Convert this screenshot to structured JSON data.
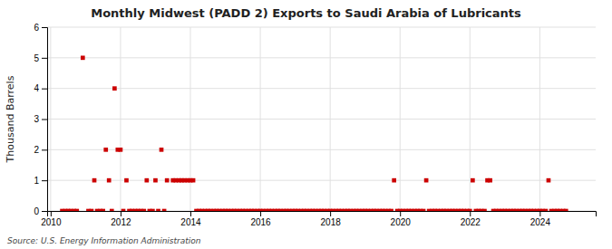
{
  "chart_data": {
    "type": "scatter",
    "title": "Monthly Midwest (PADD 2) Exports to Saudi Arabia of Lubricants",
    "ylabel": "Thousand Barrels",
    "source": "Source: U.S. Energy Information Administration",
    "color": "#cc0000",
    "marker": "square",
    "grid": true,
    "xlim": [
      2009.9,
      2025.6
    ],
    "xticks": [
      2010,
      2012,
      2014,
      2016,
      2018,
      2020,
      2022,
      2024
    ],
    "ylim": [
      0,
      6
    ],
    "yticks": [
      0,
      1,
      2,
      3,
      4,
      5,
      6
    ],
    "x": [
      2010.92,
      2011.25,
      2011.5,
      2011.58,
      2011.67,
      2011.75,
      2011.83,
      2011.92,
      2012,
      2012.08,
      2012.17,
      2012.25,
      2012.33,
      2012.75,
      2012.83,
      2013,
      2013.08,
      2013.17,
      2013.33,
      2013.5,
      2013.58,
      2013.67,
      2013.75,
      2013.83,
      2013.92,
      2014,
      2014.08,
      2010.33,
      2010.42,
      2010.5,
      2010.58,
      2010.67,
      2010.75,
      2011.08,
      2011.17,
      2011.33,
      2011.42,
      2012.42,
      2012.5,
      2012.58,
      2012.67,
      2012.92,
      2013.25,
      2014.17,
      2014.25,
      2014.33,
      2014.42,
      2014.5,
      2014.58,
      2014.67,
      2014.75,
      2014.83,
      2014.92,
      2015,
      2015.08,
      2015.17,
      2015.25,
      2015.33,
      2015.42,
      2015.5,
      2015.58,
      2015.67,
      2015.75,
      2015.83,
      2015.92,
      2016,
      2016.08,
      2016.17,
      2016.25,
      2016.33,
      2016.42,
      2016.5,
      2016.58,
      2016.67,
      2016.75,
      2016.83,
      2016.92,
      2017,
      2017.08,
      2017.17,
      2017.25,
      2017.33,
      2017.42,
      2017.5,
      2017.58,
      2017.67,
      2017.75,
      2017.83,
      2017.92,
      2018,
      2018.08,
      2018.17,
      2018.25,
      2018.33,
      2018.42,
      2018.5,
      2018.58,
      2018.67,
      2018.75,
      2018.83,
      2018.92,
      2019,
      2019.08,
      2019.17,
      2019.25,
      2019.33,
      2019.42,
      2019.5,
      2019.58,
      2019.67,
      2019.75,
      2019.83,
      2019.92,
      2020,
      2020.08,
      2020.17,
      2020.25,
      2020.33,
      2020.42,
      2020.5,
      2020.58,
      2020.67,
      2020.75,
      2020.83,
      2020.92,
      2021,
      2021.08,
      2021.17,
      2021.25,
      2021.33,
      2021.42,
      2021.5,
      2021.58,
      2021.67,
      2021.75,
      2021.83,
      2021.92,
      2022,
      2022.08,
      2022.17,
      2022.25,
      2022.33,
      2022.42,
      2022.5,
      2022.58,
      2022.67,
      2022.75,
      2022.83,
      2022.92,
      2023,
      2023.08,
      2023.17,
      2023.25,
      2023.33,
      2023.42,
      2023.5,
      2023.58,
      2023.67,
      2023.75,
      2023.83,
      2023.92,
      2024,
      2024.08,
      2024.17,
      2024.25,
      2024.33,
      2024.42,
      2024.5,
      2024.58,
      2024.67,
      2024.75
    ],
    "values": [
      5,
      1,
      0,
      2,
      1,
      0,
      4,
      2,
      2,
      0,
      1,
      0,
      0,
      1,
      0,
      1,
      0,
      2,
      1,
      1,
      1,
      1,
      1,
      1,
      1,
      1,
      1,
      0,
      0,
      0,
      0,
      0,
      0,
      0,
      0,
      0,
      0,
      0,
      0,
      0,
      0,
      0,
      0,
      0,
      0,
      0,
      0,
      0,
      0,
      0,
      0,
      0,
      0,
      0,
      0,
      0,
      0,
      0,
      0,
      0,
      0,
      0,
      0,
      0,
      0,
      0,
      0,
      0,
      0,
      0,
      0,
      0,
      0,
      0,
      0,
      0,
      0,
      0,
      0,
      0,
      0,
      0,
      0,
      0,
      0,
      0,
      0,
      0,
      0,
      0,
      0,
      0,
      0,
      0,
      0,
      0,
      0,
      0,
      0,
      0,
      0,
      0,
      0,
      0,
      0,
      0,
      0,
      0,
      0,
      0,
      0,
      1,
      0,
      0,
      0,
      0,
      0,
      0,
      0,
      0,
      0,
      0,
      1,
      0,
      0,
      0,
      0,
      0,
      0,
      0,
      0,
      0,
      0,
      0,
      0,
      0,
      0,
      0,
      1,
      0,
      0,
      0,
      0,
      1,
      1,
      0,
      0,
      0,
      0,
      0,
      0,
      0,
      0,
      0,
      0,
      0,
      0,
      0,
      0,
      0,
      0,
      0,
      0,
      0,
      1,
      0,
      0,
      0,
      0,
      0,
      0
    ]
  }
}
